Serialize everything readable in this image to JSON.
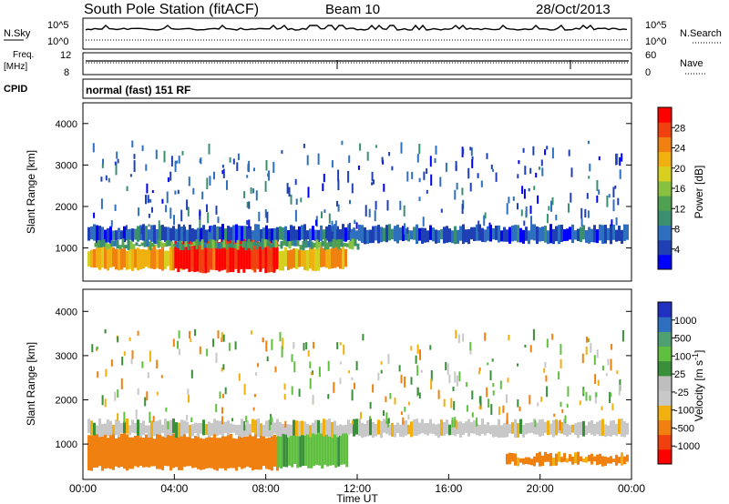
{
  "header": {
    "station": "South Pole Station (fitACF)",
    "beam": "Beam 10",
    "date": "28/Oct/2013"
  },
  "panels": {
    "nsky": {
      "label": "N.Sky",
      "ticks_left": [
        "10^5",
        "10^0"
      ],
      "right_label": "N.Search",
      "ticks_right": [
        "10^5",
        "10^0"
      ]
    },
    "freq": {
      "label_line1": "Freq.",
      "label_line2": "[MHz]",
      "ticks_left": [
        "12",
        "8"
      ],
      "right_label": "Nave",
      "ticks_right": [
        "60",
        "0"
      ]
    },
    "cpid": {
      "label": "CPID",
      "value": "normal (fast) 151 RF"
    }
  },
  "colors": {
    "power_scale": [
      "#0000ff",
      "#1f3fb5",
      "#2f6fbf",
      "#3a8f70",
      "#4fa050",
      "#88c040",
      "#d8d020",
      "#f0b010",
      "#f08010",
      "#f04010",
      "#ff0000"
    ],
    "velocity_scale": [
      "#ff0000",
      "#f04010",
      "#f08010",
      "#f0b010",
      "#c8c8c8",
      "#bebebe",
      "#3a8f3a",
      "#5fbf3f",
      "#4fa070",
      "#2f6fbf",
      "#2030c0"
    ]
  },
  "chart_data": [
    {
      "type": "heatmap",
      "name": "power",
      "ylabel": "Slant Range [km]",
      "ylim": [
        200,
        4500
      ],
      "yticks": [
        1000,
        2000,
        3000,
        4000
      ],
      "xlim": [
        0,
        24
      ],
      "colorbar": {
        "label": "Power [dB]",
        "ticks": [
          4,
          8,
          12,
          16,
          20,
          24,
          28
        ],
        "range": [
          0,
          32
        ]
      },
      "bands": [
        {
          "t0": 0.2,
          "t1": 11.5,
          "r0": 500,
          "r1": 1000,
          "value": 22
        },
        {
          "t0": 4.0,
          "t1": 8.5,
          "r0": 450,
          "r1": 1200,
          "value": 30
        },
        {
          "t0": 0.2,
          "t1": 23.8,
          "r0": 1150,
          "r1": 1500,
          "value": 6
        },
        {
          "t0": 0.5,
          "t1": 12.0,
          "r0": 1000,
          "r1": 1150,
          "value": 12
        }
      ]
    },
    {
      "type": "heatmap",
      "name": "velocity",
      "ylabel": "Slant Range [km]",
      "xlabel": "Time UT",
      "ylim": [
        200,
        4500
      ],
      "yticks": [
        1000,
        2000,
        3000,
        4000
      ],
      "xlim": [
        0,
        24
      ],
      "xticks": [
        "00:00",
        "04:00",
        "08:00",
        "12:00",
        "16:00",
        "20:00",
        "00:00"
      ],
      "colorbar": {
        "label": "Velocity [m s^-1]",
        "ticks": [
          -1000,
          -500,
          -100,
          -25,
          25,
          100,
          500,
          1000
        ]
      },
      "bands": [
        {
          "t0": 0.2,
          "t1": 8.5,
          "r0": 450,
          "r1": 1200,
          "value": -150
        },
        {
          "t0": 8.5,
          "t1": 11.5,
          "r0": 500,
          "r1": 1300,
          "value": 120
        },
        {
          "t0": 0.2,
          "t1": 23.8,
          "r0": 1200,
          "r1": 1500,
          "value": 0
        },
        {
          "t0": 18.5,
          "t1": 23.8,
          "r0": 550,
          "r1": 750,
          "value": -120
        }
      ]
    }
  ]
}
